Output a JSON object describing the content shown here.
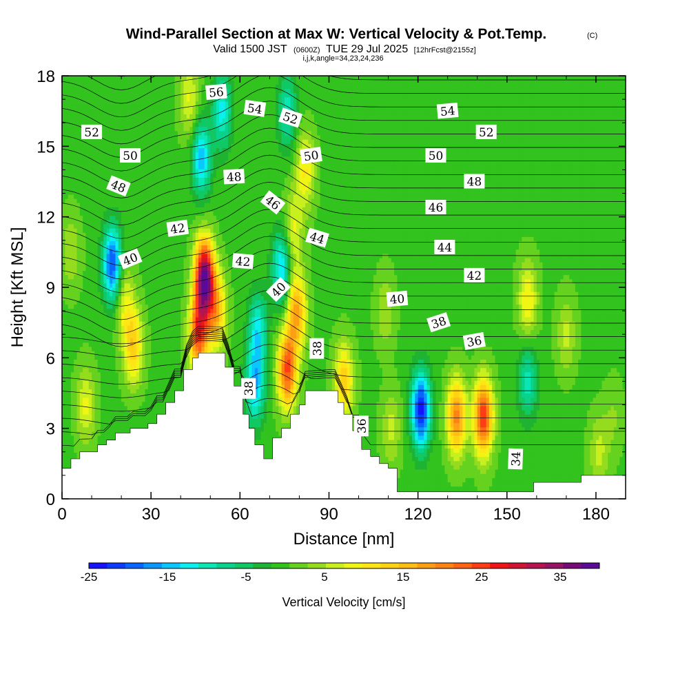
{
  "header": {
    "title": "Wind-Parallel Section at Max W: Vertical Velocity & Pot.Temp.",
    "copyright": "(C)",
    "valid_prefix": "Valid 1500 JST",
    "valid_zulu": "(0600Z)",
    "valid_date": "TUE 29 Jul 2025",
    "forecast": "[12hrFcst@2155z]",
    "indices": "i,j,k,angle=34,23,24,236"
  },
  "colorbar": {
    "title": "Vertical Velocity [cm/s]",
    "ticks": [
      "-25",
      "-15",
      "-5",
      "5",
      "15",
      "25",
      "35"
    ],
    "tick_values": [
      -25,
      -15,
      -5,
      5,
      15,
      25,
      35
    ],
    "range": [
      -25,
      40
    ],
    "colors": [
      "#1414ff",
      "#0a3cff",
      "#0a64ff",
      "#0a96ff",
      "#0ac8ff",
      "#0af0f0",
      "#0ae6b4",
      "#0ad28c",
      "#10c864",
      "#1eb432",
      "#32c31e",
      "#64d21e",
      "#96dc1e",
      "#c8f01e",
      "#f0f514",
      "#ffe614",
      "#ffd214",
      "#ffbe14",
      "#ffa014",
      "#ff8214",
      "#ff6414",
      "#ff3c14",
      "#f01414",
      "#d21432",
      "#b41450",
      "#961464",
      "#780a78",
      "#5a0a96"
    ]
  },
  "chart_data": {
    "type": "heatmap",
    "title": "Wind-Parallel Section at Max W: Vertical Velocity & Pot.Temp.",
    "xlabel": "Distance [nm]",
    "ylabel": "Height [Kft MSL]",
    "xlim": [
      0,
      190
    ],
    "ylim": [
      0,
      18
    ],
    "x_ticks": [
      "0",
      "30",
      "60",
      "90",
      "120",
      "150",
      "180"
    ],
    "x_tick_values": [
      0,
      30,
      60,
      90,
      120,
      150,
      180
    ],
    "y_ticks": [
      "0",
      "3",
      "6",
      "9",
      "12",
      "15",
      "18"
    ],
    "y_tick_values": [
      0,
      3,
      6,
      9,
      12,
      15,
      18
    ],
    "field": "Vertical Velocity [cm/s]",
    "background_w": 0,
    "w_features": [
      {
        "x": 48,
        "z": 9.4,
        "w": 38
      },
      {
        "x": 46,
        "z": 7.0,
        "w": 24
      },
      {
        "x": 52,
        "z": 8.0,
        "w": 16
      },
      {
        "x": 24,
        "z": 6.5,
        "w": 14
      },
      {
        "x": 21,
        "z": 8.5,
        "w": 8
      },
      {
        "x": 76,
        "z": 5.5,
        "w": 24
      },
      {
        "x": 79,
        "z": 8.0,
        "w": 18
      },
      {
        "x": 121,
        "z": 3.8,
        "w": -24
      },
      {
        "x": 133,
        "z": 3.5,
        "w": 20
      },
      {
        "x": 142,
        "z": 3.5,
        "w": 26
      },
      {
        "x": 111,
        "z": 3.0,
        "w": 6
      },
      {
        "x": 95,
        "z": 5.0,
        "w": 14
      },
      {
        "x": 17,
        "z": 10.0,
        "w": -21
      },
      {
        "x": 65,
        "z": 4.8,
        "w": -15
      },
      {
        "x": 66,
        "z": 7.2,
        "w": -12
      },
      {
        "x": 74,
        "z": 9.8,
        "w": -14
      },
      {
        "x": 47,
        "z": 14.5,
        "w": -15
      },
      {
        "x": 54,
        "z": 16.5,
        "w": -12
      },
      {
        "x": 76,
        "z": 16.5,
        "w": -10
      },
      {
        "x": 82,
        "z": 14.0,
        "w": 10
      },
      {
        "x": 78,
        "z": 11.5,
        "w": 8
      },
      {
        "x": 43,
        "z": 17.0,
        "w": 8
      },
      {
        "x": 157,
        "z": 5.0,
        "w": -10
      },
      {
        "x": 157,
        "z": 8.5,
        "w": 10
      },
      {
        "x": 170,
        "z": 7.0,
        "w": 6
      },
      {
        "x": 3,
        "z": 10.5,
        "w": 5
      },
      {
        "x": 8,
        "z": 4.0,
        "w": 8
      },
      {
        "x": 109,
        "z": 8.0,
        "w": 5
      },
      {
        "x": 186,
        "z": 3.5,
        "w": 3
      },
      {
        "x": 181,
        "z": 2.0,
        "w": 6
      }
    ],
    "terrain_top_kft": [
      {
        "x": 0,
        "z": 1.3
      },
      {
        "x": 3,
        "z": 1.7
      },
      {
        "x": 6,
        "z": 2.0
      },
      {
        "x": 12,
        "z": 2.3
      },
      {
        "x": 15,
        "z": 2.5
      },
      {
        "x": 18,
        "z": 2.8
      },
      {
        "x": 23,
        "z": 3.0
      },
      {
        "x": 29,
        "z": 3.2
      },
      {
        "x": 32,
        "z": 3.6
      },
      {
        "x": 35,
        "z": 4.1
      },
      {
        "x": 38,
        "z": 4.6
      },
      {
        "x": 41,
        "z": 5.5
      },
      {
        "x": 44,
        "z": 6.0
      },
      {
        "x": 46,
        "z": 6.2
      },
      {
        "x": 55,
        "z": 5.6
      },
      {
        "x": 58,
        "z": 4.8
      },
      {
        "x": 61,
        "z": 3.6
      },
      {
        "x": 63,
        "z": 3.0
      },
      {
        "x": 65,
        "z": 2.3
      },
      {
        "x": 68,
        "z": 1.7
      },
      {
        "x": 71,
        "z": 2.6
      },
      {
        "x": 74,
        "z": 3.0
      },
      {
        "x": 77,
        "z": 3.6
      },
      {
        "x": 80,
        "z": 4.0
      },
      {
        "x": 82,
        "z": 4.6
      },
      {
        "x": 93,
        "z": 4.1
      },
      {
        "x": 95,
        "z": 3.6
      },
      {
        "x": 98,
        "z": 2.9
      },
      {
        "x": 101,
        "z": 2.1
      },
      {
        "x": 104,
        "z": 1.8
      },
      {
        "x": 107,
        "z": 1.5
      },
      {
        "x": 110,
        "z": 1.3
      },
      {
        "x": 113,
        "z": 0.3
      },
      {
        "x": 159,
        "z": 0.7
      },
      {
        "x": 175,
        "z": 1.0
      },
      {
        "x": 190,
        "z": 1.3
      }
    ],
    "theta_contours": [
      {
        "value": 34,
        "label": "34"
      },
      {
        "value": 36,
        "label": "36"
      },
      {
        "value": 38,
        "label": "38"
      },
      {
        "value": 40,
        "label": "40"
      },
      {
        "value": 42,
        "label": "42"
      },
      {
        "value": 44,
        "label": "44"
      },
      {
        "value": 46,
        "label": "46"
      },
      {
        "value": 48,
        "label": "48"
      },
      {
        "value": 50,
        "label": "50"
      },
      {
        "value": 52,
        "label": "52"
      },
      {
        "value": 54,
        "label": "54"
      },
      {
        "value": 56,
        "label": "56"
      }
    ],
    "theta_labels": [
      {
        "text": "56",
        "x": 52,
        "z": 17.3,
        "rot": -5
      },
      {
        "text": "54",
        "x": 65,
        "z": 16.6,
        "rot": 8
      },
      {
        "text": "52",
        "x": 77,
        "z": 16.2,
        "rot": 18
      },
      {
        "text": "52",
        "x": 10,
        "z": 15.6,
        "rot": 0
      },
      {
        "text": "50",
        "x": 23,
        "z": 14.6,
        "rot": 0
      },
      {
        "text": "50",
        "x": 84,
        "z": 14.6,
        "rot": -8
      },
      {
        "text": "48",
        "x": 19,
        "z": 13.3,
        "rot": 22
      },
      {
        "text": "48",
        "x": 58,
        "z": 13.7,
        "rot": -3
      },
      {
        "text": "46",
        "x": 71,
        "z": 12.6,
        "rot": 38
      },
      {
        "text": "42",
        "x": 39,
        "z": 11.5,
        "rot": -8
      },
      {
        "text": "44",
        "x": 86,
        "z": 11.1,
        "rot": 17
      },
      {
        "text": "40",
        "x": 23,
        "z": 10.2,
        "rot": -22
      },
      {
        "text": "42",
        "x": 61,
        "z": 10.1,
        "rot": 5
      },
      {
        "text": "40",
        "x": 73,
        "z": 8.9,
        "rot": -45
      },
      {
        "text": "38",
        "x": 86,
        "z": 6.4,
        "rot": -90
      },
      {
        "text": "38",
        "x": 63,
        "z": 4.7,
        "rot": -90
      },
      {
        "text": "36",
        "x": 101,
        "z": 3.1,
        "rot": -90
      },
      {
        "text": "54",
        "x": 130,
        "z": 16.5,
        "rot": -5
      },
      {
        "text": "52",
        "x": 143,
        "z": 15.6,
        "rot": 0
      },
      {
        "text": "50",
        "x": 126,
        "z": 14.6,
        "rot": 0
      },
      {
        "text": "48",
        "x": 139,
        "z": 13.5,
        "rot": 0
      },
      {
        "text": "46",
        "x": 126,
        "z": 12.4,
        "rot": 0
      },
      {
        "text": "44",
        "x": 129,
        "z": 10.7,
        "rot": 0
      },
      {
        "text": "42",
        "x": 139,
        "z": 9.5,
        "rot": 0
      },
      {
        "text": "40",
        "x": 113,
        "z": 8.5,
        "rot": -5
      },
      {
        "text": "38",
        "x": 127,
        "z": 7.5,
        "rot": -18
      },
      {
        "text": "36",
        "x": 139,
        "z": 6.7,
        "rot": -10
      },
      {
        "text": "34",
        "x": 153,
        "z": 1.7,
        "rot": -88
      }
    ]
  }
}
